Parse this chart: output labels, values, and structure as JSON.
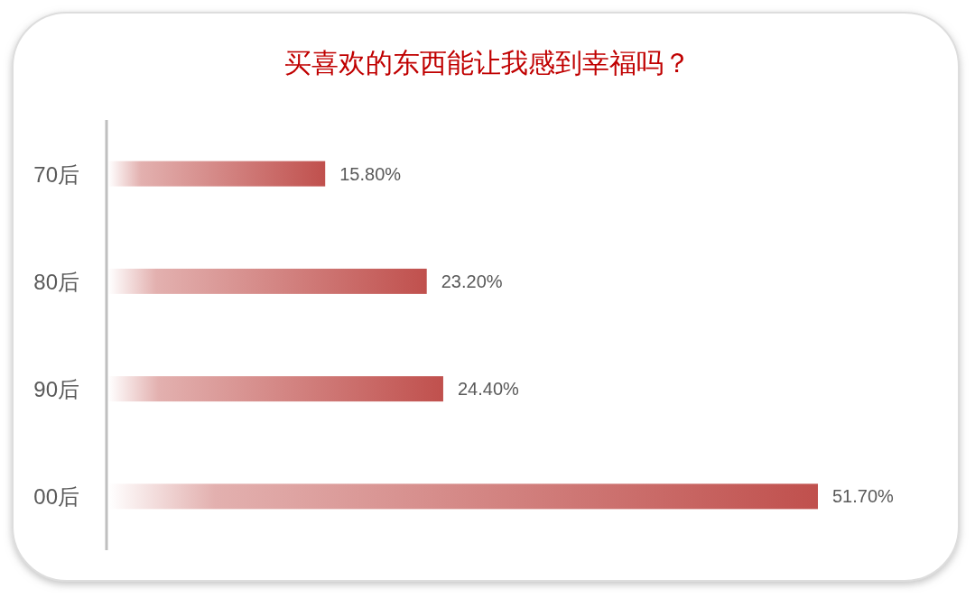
{
  "chart_data": {
    "type": "bar",
    "orientation": "horizontal",
    "title": "买喜欢的东西能让我感到幸福吗？",
    "categories": [
      "70后",
      "80后",
      "90后",
      "00后"
    ],
    "values": [
      15.8,
      23.2,
      24.4,
      51.7
    ],
    "value_labels": [
      "15.80%",
      "23.20%",
      "24.40%",
      "51.70%"
    ],
    "color": "#c0504d"
  }
}
